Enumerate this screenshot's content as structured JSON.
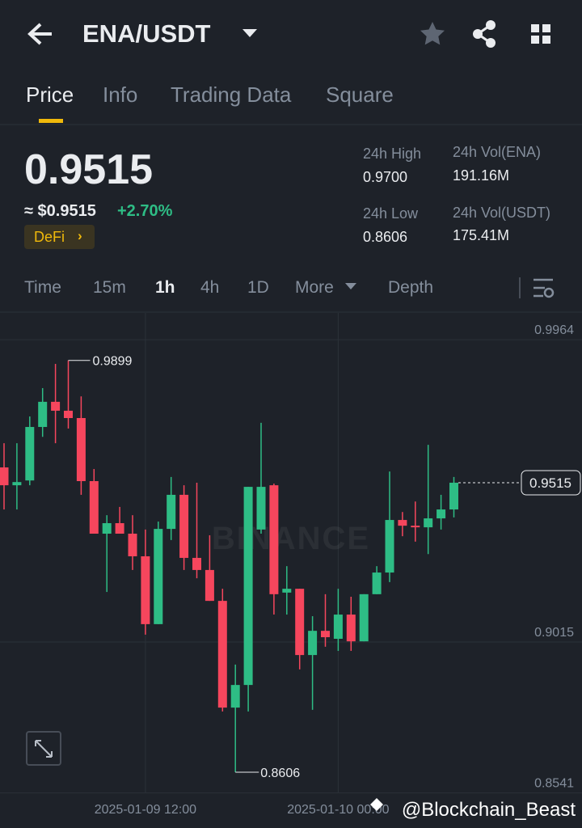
{
  "header": {
    "pair": "ENA/USDT"
  },
  "tabs": [
    "Price",
    "Info",
    "Trading Data",
    "Square"
  ],
  "ticker": {
    "price": "0.9515",
    "approx": "≈ $0.9515",
    "change": "+2.70%",
    "tag": "DeFi"
  },
  "stats": [
    {
      "label": "24h High",
      "value": "0.9700"
    },
    {
      "label": "24h Vol(ENA)",
      "value": "191.16M"
    },
    {
      "label": "24h Low",
      "value": "0.8606"
    },
    {
      "label": "24h Vol(USDT)",
      "value": "175.41M"
    }
  ],
  "intervals": [
    "Time",
    "15m",
    "1h",
    "4h",
    "1D",
    "More",
    "Depth"
  ],
  "chart_data": {
    "type": "candlestick",
    "categories": [
      null,
      null,
      null,
      null,
      null,
      null,
      null,
      null,
      null,
      null,
      null,
      null,
      null,
      null,
      null,
      null,
      null,
      null,
      null,
      null,
      null,
      null,
      null,
      null,
      null,
      null,
      null,
      null,
      null,
      null,
      null,
      null,
      null,
      null,
      null,
      null
    ],
    "open": [
      0.9563,
      0.9507,
      0.9522,
      0.969,
      0.9769,
      0.9741,
      0.9718,
      0.952,
      0.9355,
      0.9388,
      0.9355,
      0.9284,
      0.9071,
      0.937,
      0.9477,
      0.9279,
      0.9241,
      0.9144,
      0.8809,
      0.888,
      0.9368,
      0.9507,
      0.917,
      0.9182,
      0.8974,
      0.905,
      0.9025,
      0.9101,
      0.9017,
      0.9165,
      0.9233,
      0.9398,
      0.938,
      0.9375,
      0.9403,
      0.9431
    ],
    "high": [
      0.9639,
      0.9639,
      0.9723,
      0.9812,
      0.9888,
      0.9899,
      0.9786,
      0.9558,
      0.9413,
      0.9439,
      0.9413,
      0.9368,
      0.9393,
      0.9533,
      0.9507,
      0.9515,
      0.935,
      0.9182,
      0.8944,
      0.9502,
      0.9703,
      0.9512,
      0.9253,
      0.9182,
      0.9096,
      0.9165,
      0.9182,
      0.9157,
      0.9165,
      0.9253,
      0.955,
      0.9423,
      0.9456,
      0.9634,
      0.9477,
      0.9533
    ],
    "low": [
      0.9431,
      0.9431,
      0.9507,
      0.9659,
      0.9639,
      0.9685,
      0.9477,
      0.9355,
      0.9172,
      0.9355,
      0.9241,
      0.9038,
      0.9071,
      0.9335,
      0.9241,
      0.9215,
      0.9144,
      0.8797,
      0.8606,
      0.8797,
      0.9355,
      0.9101,
      0.9101,
      0.8929,
      0.8802,
      0.9,
      0.8987,
      0.8987,
      0.9017,
      0.9165,
      0.9203,
      0.9347,
      0.933,
      0.9291,
      0.9368,
      0.9406
    ],
    "close": [
      0.9507,
      0.9517,
      0.969,
      0.9769,
      0.9741,
      0.9718,
      0.952,
      0.9355,
      0.9388,
      0.9355,
      0.9284,
      0.9071,
      0.937,
      0.9477,
      0.9279,
      0.9241,
      0.9144,
      0.8809,
      0.888,
      0.9502,
      0.9502,
      0.9165,
      0.9182,
      0.8974,
      0.905,
      0.903,
      0.9101,
      0.9017,
      0.9165,
      0.9233,
      0.9398,
      0.938,
      0.9375,
      0.9403,
      0.9431,
      0.9515
    ],
    "up_color": "#2ebd85",
    "down_color": "#f6465d",
    "ylim": [
      0.8431,
      1.0048
    ],
    "yticks": [
      0.9964,
      0.9015,
      0.8541
    ],
    "xticks": [
      {
        "value": 11,
        "label": "2025-01-09 12:00"
      },
      {
        "value": 26,
        "label": "2025-01-10 00:00"
      }
    ],
    "grid": true,
    "high_marker": 0.9899,
    "low_marker": 0.8606,
    "last_price": 0.9515,
    "watermark": "BINANCE",
    "credit": "@Blockchain_Beast"
  }
}
